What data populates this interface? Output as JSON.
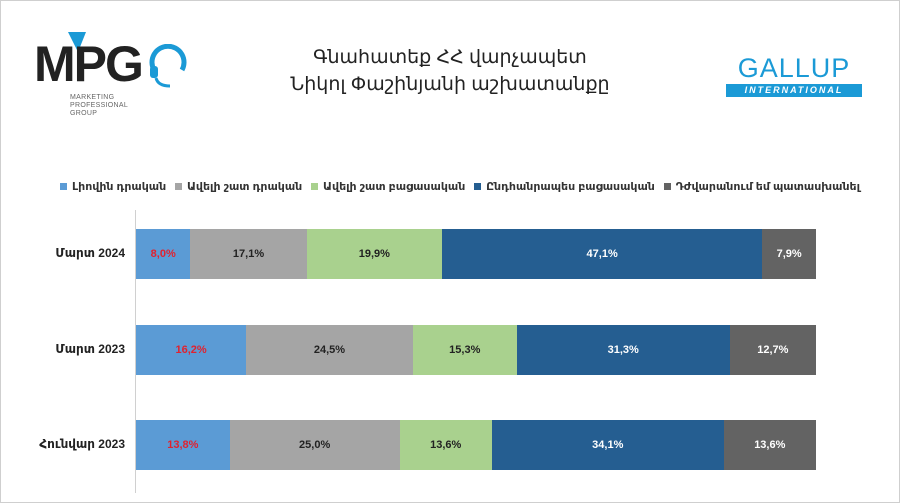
{
  "title": {
    "line1": "Գնահատեք ՀՀ վարչապետ",
    "line2": "Նիկոլ Փաշինյանի աշխատանքը"
  },
  "logos": {
    "mpg": {
      "mark": "MPG",
      "tagline": [
        "MARKETING",
        "PROFESSIONAL",
        "GROUP"
      ]
    },
    "gallup": {
      "word": "GALLUP",
      "band": "INTERNATIONAL"
    }
  },
  "colors": {
    "full_positive": "#5b9bd5",
    "rather_positive": "#a5a5a5",
    "rather_negative": "#a9d18e",
    "fully_negative": "#255e91",
    "hard_to_answer": "#636363",
    "first_value_text": "#e0222f"
  },
  "chart_data": {
    "type": "bar",
    "orientation": "horizontal",
    "stacked": "100%",
    "categories": [
      "Մարտ 2024",
      "Մարտ 2023",
      "Հունվար 2023"
    ],
    "series": [
      {
        "name": "Լիովին դրական",
        "color": "#5b9bd5",
        "values": [
          8.0,
          16.2,
          13.8
        ],
        "labels": [
          "8,0%",
          "16,2%",
          "13,8%"
        ]
      },
      {
        "name": "Ավելի շատ դրական",
        "color": "#a5a5a5",
        "values": [
          17.1,
          24.5,
          25.0
        ],
        "labels": [
          "17,1%",
          "24,5%",
          "25,0%"
        ]
      },
      {
        "name": "Ավելի շատ բացասական",
        "color": "#a9d18e",
        "values": [
          19.9,
          15.3,
          13.6
        ],
        "labels": [
          "19,9%",
          "15,3%",
          "13,6%"
        ]
      },
      {
        "name": "Ընդհանրապես բացասական",
        "color": "#255e91",
        "values": [
          47.1,
          31.3,
          34.1
        ],
        "labels": [
          "47,1%",
          "31,3%",
          "34,1%"
        ]
      },
      {
        "name": "Դժվարանում եմ պատասխանել",
        "color": "#636363",
        "values": [
          7.9,
          12.7,
          13.6
        ],
        "labels": [
          "7,9%",
          "12,7%",
          "13,6%"
        ]
      }
    ],
    "legend": "top",
    "grid": false
  }
}
